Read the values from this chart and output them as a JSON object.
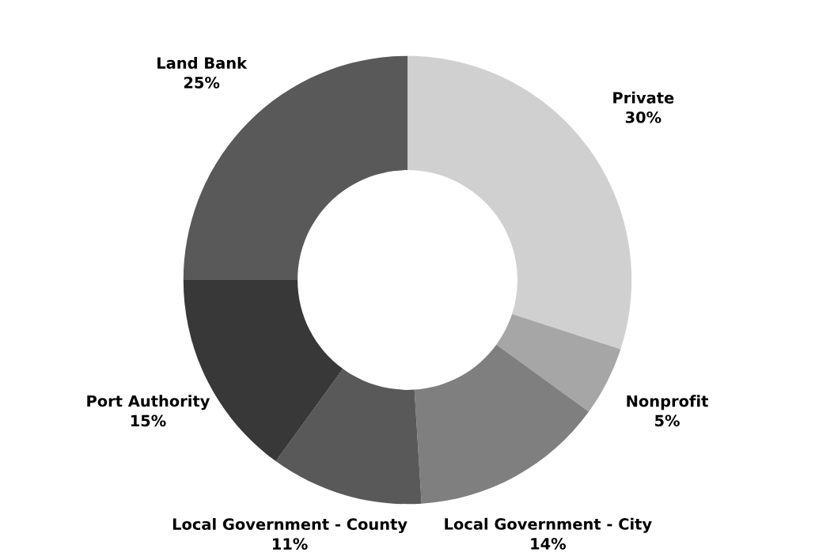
{
  "chart_data": {
    "type": "donut",
    "categories": [
      "Private",
      "Nonprofit",
      "Local Government - City",
      "Local Government - County",
      "Port Authority",
      "Land Bank"
    ],
    "values": [
      30,
      5,
      14,
      11,
      15,
      25
    ],
    "colors": [
      "#d0d0d0",
      "#a6a6a6",
      "#7f7f7f",
      "#595959",
      "#383838",
      "#595959"
    ],
    "value_labels": [
      "30%",
      "5%",
      "14%",
      "11%",
      "15%",
      "25%"
    ]
  }
}
